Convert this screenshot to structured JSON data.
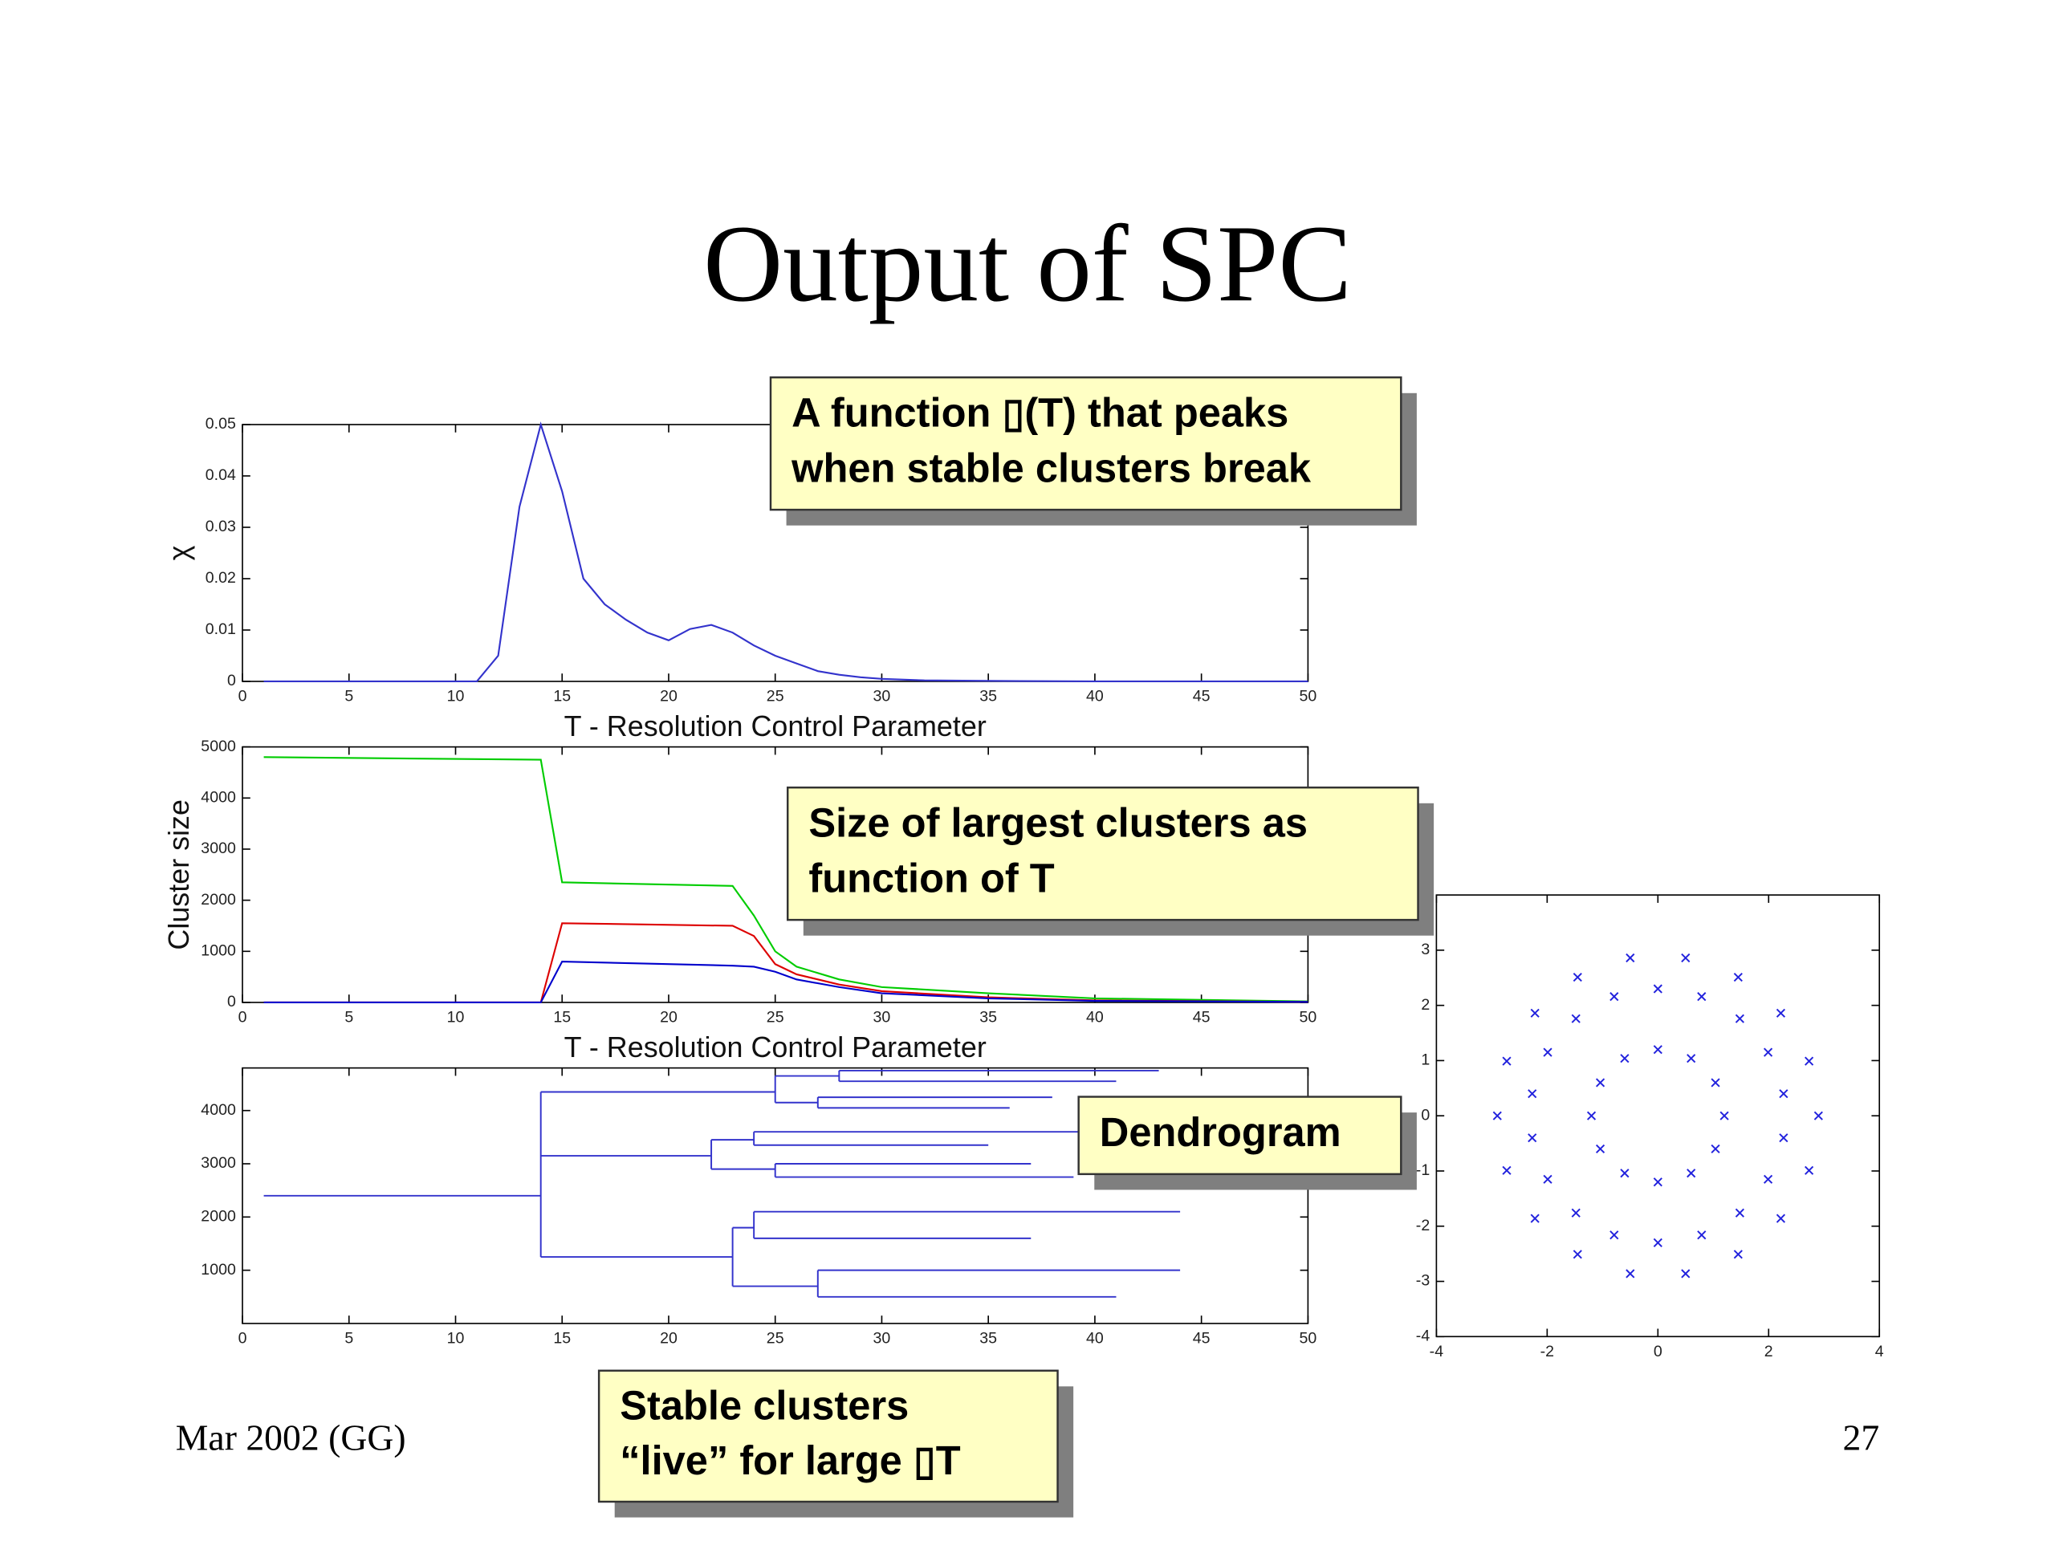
{
  "title": "Output of SPC",
  "footer": {
    "left": "Mar 2002 (GG)",
    "right": "27"
  },
  "callouts": [
    {
      "lines": [
        "A function ▯(T) that peaks",
        "when stable clusters break"
      ]
    },
    {
      "lines": [
        "Size of largest clusters as",
        "function of T"
      ]
    },
    {
      "lines": [
        "Dendrogram"
      ]
    },
    {
      "lines": [
        "Stable clusters",
        "“live” for large ▯T"
      ]
    }
  ],
  "chart_data": [
    {
      "type": "line",
      "xlabel": "T - Resolution Control Parameter",
      "ylabel": "χ",
      "color": "#3333cc",
      "x": [
        1,
        11,
        12,
        13,
        14,
        15,
        16,
        17,
        18,
        19,
        20,
        21,
        22,
        23,
        24,
        25,
        26,
        27,
        28,
        29,
        30,
        32,
        35,
        40,
        50
      ],
      "values": [
        0,
        0,
        0.005,
        0.034,
        0.05,
        0.037,
        0.02,
        0.015,
        0.012,
        0.0095,
        0.008,
        0.0102,
        0.011,
        0.0095,
        0.007,
        0.005,
        0.0035,
        0.002,
        0.0013,
        0.0008,
        0.0005,
        0.0002,
        0.0001,
        0,
        0
      ],
      "xlim": [
        0,
        50
      ],
      "xticks": [
        0,
        5,
        10,
        15,
        20,
        25,
        30,
        35,
        40,
        45,
        50
      ],
      "ylim": [
        0,
        0.05
      ],
      "yticks": [
        0,
        0.01,
        0.02,
        0.03,
        0.04,
        0.05
      ]
    },
    {
      "type": "line",
      "xlabel": "T - Resolution Control Parameter",
      "ylabel": "Cluster size",
      "x": [
        1,
        14,
        15,
        23,
        24,
        25,
        26,
        28,
        30,
        35,
        40,
        50
      ],
      "series": [
        {
          "color": "#00cc00",
          "values": [
            4800,
            4750,
            2350,
            2280,
            1700,
            1000,
            700,
            450,
            300,
            180,
            80,
            20
          ]
        },
        {
          "color": "#dd0000",
          "values": [
            0,
            0,
            1550,
            1500,
            1300,
            750,
            550,
            350,
            220,
            100,
            40,
            10
          ]
        },
        {
          "color": "#0000cc",
          "values": [
            0,
            0,
            800,
            720,
            700,
            600,
            450,
            300,
            180,
            80,
            30,
            10
          ]
        }
      ],
      "xlim": [
        0,
        50
      ],
      "xticks": [
        0,
        5,
        10,
        15,
        20,
        25,
        30,
        35,
        40,
        45,
        50
      ],
      "ylim": [
        0,
        5000
      ],
      "yticks": [
        0,
        1000,
        2000,
        3000,
        4000,
        5000
      ]
    },
    {
      "type": "dendrogram",
      "color": "#3333cc",
      "tree": {
        "x": [
          1,
          14
        ],
        "y": 2400,
        "children": [
          {
            "x": [
              14,
              25
            ],
            "y": 4350,
            "children": [
              {
                "x": [
                  25,
                  28
                ],
                "y": 4650,
                "children": [
                  {
                    "x": [
                      28,
                      43
                    ],
                    "y": 4750
                  },
                  {
                    "x": [
                      28,
                      41
                    ],
                    "y": 4550
                  }
                ]
              },
              {
                "x": [
                  25,
                  27
                ],
                "y": 4150,
                "children": [
                  {
                    "x": [
                      27,
                      38
                    ],
                    "y": 4250
                  },
                  {
                    "x": [
                      27,
                      36
                    ],
                    "y": 4050
                  }
                ]
              }
            ]
          },
          {
            "x": [
              14,
              22
            ],
            "y": 3150,
            "children": [
              {
                "x": [
                  22,
                  24
                ],
                "y": 3450,
                "children": [
                  {
                    "x": [
                      24,
                      40
                    ],
                    "y": 3600
                  },
                  {
                    "x": [
                      24,
                      35
                    ],
                    "y": 3350
                  }
                ]
              },
              {
                "x": [
                  22,
                  25
                ],
                "y": 2900,
                "children": [
                  {
                    "x": [
                      25,
                      37
                    ],
                    "y": 3000
                  },
                  {
                    "x": [
                      25,
                      39
                    ],
                    "y": 2750
                  }
                ]
              }
            ]
          },
          {
            "x": [
              14,
              23
            ],
            "y": 1250,
            "children": [
              {
                "x": [
                  23,
                  24
                ],
                "y": 1800,
                "children": [
                  {
                    "x": [
                      24,
                      44
                    ],
                    "y": 2100
                  },
                  {
                    "x": [
                      24,
                      37
                    ],
                    "y": 1600
                  }
                ]
              },
              {
                "x": [
                  23,
                  27
                ],
                "y": 700,
                "children": [
                  {
                    "x": [
                      27,
                      44
                    ],
                    "y": 1000
                  },
                  {
                    "x": [
                      27,
                      41
                    ],
                    "y": 500
                  }
                ]
              }
            ]
          }
        ]
      },
      "xlim": [
        0,
        50
      ],
      "xticks": [
        0,
        5,
        10,
        15,
        20,
        25,
        30,
        35,
        40,
        45,
        50
      ],
      "ylim": [
        0,
        4800
      ],
      "yticks": [
        1000,
        2000,
        3000,
        4000
      ]
    },
    {
      "type": "scatter",
      "color": "#2222dd",
      "x": [
        2.9,
        2.73,
        2.22,
        1.45,
        0.5,
        -0.5,
        -1.45,
        -2.22,
        -2.73,
        -2.9,
        -2.73,
        -2.22,
        -1.45,
        -0.5,
        0.5,
        1.45,
        2.22,
        2.73,
        2.27,
        1.99,
        1.48,
        0.79,
        0,
        -0.79,
        -1.48,
        -1.99,
        -2.27,
        -2.27,
        -1.99,
        -1.48,
        -0.79,
        0,
        0.79,
        1.48,
        1.99,
        2.27,
        1.2,
        1.04,
        0.6,
        0,
        -0.6,
        -1.04,
        -1.2,
        -1.04,
        -0.6,
        0,
        0.6,
        1.04
      ],
      "y": [
        0,
        0.99,
        1.86,
        2.51,
        2.86,
        2.86,
        2.51,
        1.86,
        0.99,
        0,
        -0.99,
        -1.86,
        -2.51,
        -2.86,
        -2.86,
        -2.51,
        -1.86,
        -0.99,
        0.4,
        1.15,
        1.76,
        2.16,
        2.3,
        2.16,
        1.76,
        1.15,
        0.4,
        -0.4,
        -1.15,
        -1.76,
        -2.16,
        -2.3,
        -2.16,
        -1.76,
        -1.15,
        -0.4,
        0,
        0.6,
        1.04,
        1.2,
        1.04,
        0.6,
        0,
        -0.6,
        -1.04,
        -1.2,
        -1.04,
        -0.6
      ],
      "xlim": [
        -4,
        4
      ],
      "xticks": [
        -4,
        -2,
        0,
        2,
        4
      ],
      "ylim": [
        -4,
        4
      ],
      "yticks": [
        -4,
        -3,
        -2,
        -1,
        0,
        1,
        2,
        3
      ]
    }
  ]
}
